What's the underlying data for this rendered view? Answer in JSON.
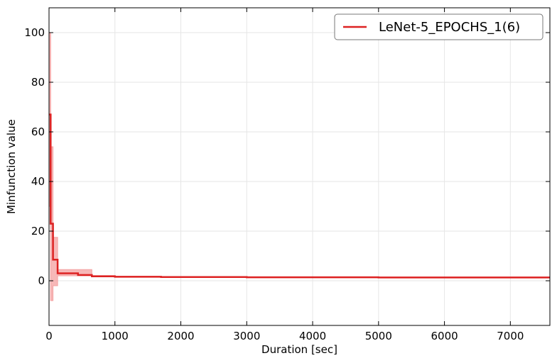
{
  "chart_data": {
    "type": "line",
    "xlabel": "Duration [sec]",
    "ylabel": "Minfunction value",
    "xlim": [
      0,
      7600
    ],
    "ylim": [
      -18,
      110
    ],
    "xticks": [
      0,
      1000,
      2000,
      3000,
      4000,
      5000,
      6000,
      7000
    ],
    "yticks": [
      0,
      20,
      40,
      60,
      80,
      100
    ],
    "grid": true,
    "legend_position": "top-right",
    "series": [
      {
        "name": "LeNet-5_EPOCHS_1(6)",
        "color": "#dd2222",
        "band_color": "#f4a0a0",
        "step": true,
        "x": [
          0,
          25,
          60,
          130,
          440,
          650,
          1000,
          1700,
          3000,
          5000,
          7600
        ],
        "values": [
          67,
          23,
          8.5,
          3,
          2.3,
          1.8,
          1.6,
          1.5,
          1.4,
          1.3,
          1.3
        ],
        "band_lower": [
          30,
          -8,
          -2,
          2,
          2,
          1.6,
          1.5,
          1.4,
          1.3,
          1.2,
          1.2
        ],
        "band_upper": [
          100,
          54,
          17.5,
          4.5,
          4.5,
          2.1,
          1.8,
          1.7,
          1.6,
          1.5,
          1.5
        ]
      }
    ]
  }
}
